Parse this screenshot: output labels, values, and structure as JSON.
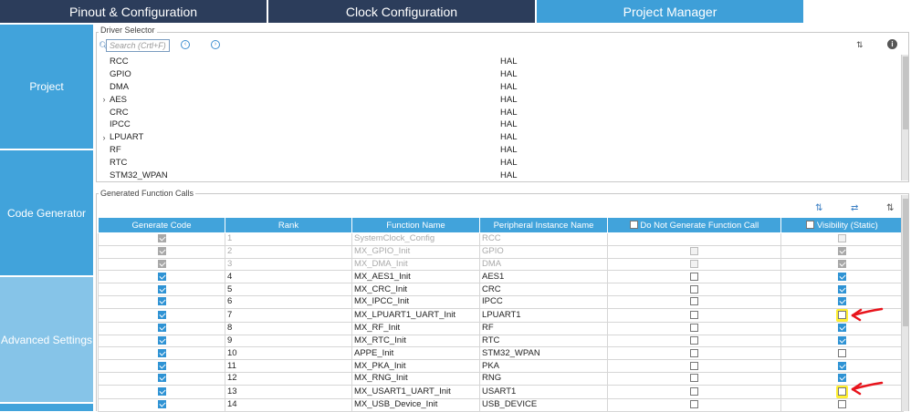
{
  "tabs": [
    "Pinout & Configuration",
    "Clock Configuration",
    "Project Manager"
  ],
  "sidebar": [
    "Project",
    "Code Generator",
    "Advanced Settings"
  ],
  "driver_selector": {
    "legend": "Driver Selector",
    "search_placeholder": "Search (Crtl+F)",
    "rows": [
      {
        "name": "RCC",
        "driver": "HAL",
        "exp": ""
      },
      {
        "name": "GPIO",
        "driver": "HAL",
        "exp": ""
      },
      {
        "name": "DMA",
        "driver": "HAL",
        "exp": ""
      },
      {
        "name": "AES",
        "driver": "HAL",
        "exp": "›"
      },
      {
        "name": "CRC",
        "driver": "HAL",
        "exp": ""
      },
      {
        "name": "IPCC",
        "driver": "HAL",
        "exp": ""
      },
      {
        "name": "LPUART",
        "driver": "HAL",
        "exp": "›"
      },
      {
        "name": "RF",
        "driver": "HAL",
        "exp": ""
      },
      {
        "name": "RTC",
        "driver": "HAL",
        "exp": ""
      },
      {
        "name": "STM32_WPAN",
        "driver": "HAL",
        "exp": ""
      }
    ]
  },
  "generated": {
    "legend": "Generated Function Calls",
    "headers": [
      "Generate Code",
      "Rank",
      "Function Name",
      "Peripheral Instance Name",
      "Do Not Generate Function Call",
      "Visibility (Static)"
    ],
    "rows": [
      {
        "gen": 1,
        "rank": "1",
        "fn": "SystemClock_Config",
        "inst": "RCC",
        "dng": "none",
        "vis": "dis",
        "grey": true
      },
      {
        "gen": 1,
        "rank": "2",
        "fn": "MX_GPIO_Init",
        "inst": "GPIO",
        "dng": "dis",
        "vis": "dison",
        "grey": true
      },
      {
        "gen": 1,
        "rank": "3",
        "fn": "MX_DMA_Init",
        "inst": "DMA",
        "dng": "dis",
        "vis": "dison",
        "grey": true
      },
      {
        "gen": 1,
        "rank": "4",
        "fn": "MX_AES1_Init",
        "inst": "AES1",
        "dng": "off",
        "vis": "on",
        "grey": false
      },
      {
        "gen": 1,
        "rank": "5",
        "fn": "MX_CRC_Init",
        "inst": "CRC",
        "dng": "off",
        "vis": "on",
        "grey": false
      },
      {
        "gen": 1,
        "rank": "6",
        "fn": "MX_IPCC_Init",
        "inst": "IPCC",
        "dng": "off",
        "vis": "on",
        "grey": false
      },
      {
        "gen": 1,
        "rank": "7",
        "fn": "MX_LPUART1_UART_Init",
        "inst": "LPUART1",
        "dng": "off",
        "vis": "hl",
        "grey": false
      },
      {
        "gen": 1,
        "rank": "8",
        "fn": "MX_RF_Init",
        "inst": "RF",
        "dng": "off",
        "vis": "on",
        "grey": false
      },
      {
        "gen": 1,
        "rank": "9",
        "fn": "MX_RTC_Init",
        "inst": "RTC",
        "dng": "off",
        "vis": "on",
        "grey": false
      },
      {
        "gen": 1,
        "rank": "10",
        "fn": "APPE_Init",
        "inst": "STM32_WPAN",
        "dng": "off",
        "vis": "off",
        "grey": false
      },
      {
        "gen": 1,
        "rank": "11",
        "fn": "MX_PKA_Init",
        "inst": "PKA",
        "dng": "off",
        "vis": "on",
        "grey": false
      },
      {
        "gen": 1,
        "rank": "12",
        "fn": "MX_RNG_Init",
        "inst": "RNG",
        "dng": "off",
        "vis": "on",
        "grey": false
      },
      {
        "gen": 1,
        "rank": "13",
        "fn": "MX_USART1_UART_Init",
        "inst": "USART1",
        "dng": "off",
        "vis": "hl",
        "grey": false
      },
      {
        "gen": 1,
        "rank": "14",
        "fn": "MX_USB_Device_Init",
        "inst": "USB_DEVICE",
        "dng": "off",
        "vis": "off",
        "grey": false
      }
    ]
  },
  "colors": {
    "tab_bar": "#2c3d5b",
    "accent": "#41a3db",
    "sidebar_inactive": "#86c4e8",
    "highlight": "#ffef33",
    "arrow": "#e8141c"
  }
}
